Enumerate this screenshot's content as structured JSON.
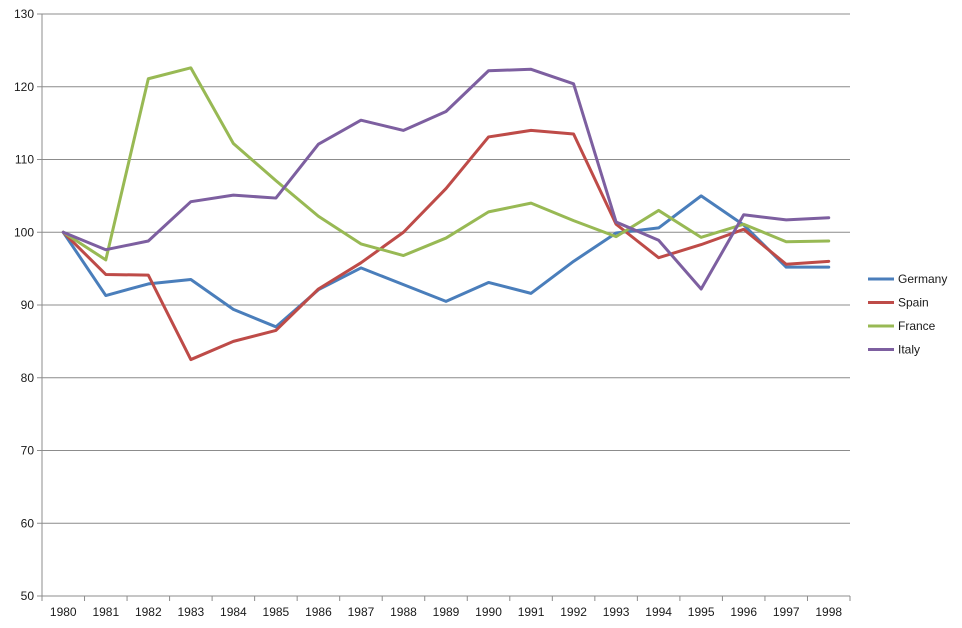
{
  "chart_data": {
    "type": "line",
    "title": "",
    "xlabel": "",
    "ylabel": "",
    "ylim": [
      50,
      130
    ],
    "y_ticks": [
      50,
      60,
      70,
      80,
      90,
      100,
      110,
      120,
      130
    ],
    "grid": "horizontal",
    "legend_position": "right",
    "categories": [
      "1980",
      "1981",
      "1982",
      "1983",
      "1984",
      "1985",
      "1986",
      "1987",
      "1988",
      "1989",
      "1990",
      "1991",
      "1992",
      "1993",
      "1994",
      "1995",
      "1996",
      "1997",
      "1998"
    ],
    "series": [
      {
        "name": "Germany",
        "color": "#4a7ebb",
        "values": [
          100,
          91.3,
          92.9,
          93.5,
          89.4,
          87.0,
          92.1,
          95.1,
          92.8,
          90.5,
          93.1,
          91.6,
          96.0,
          99.9,
          100.6,
          105.0,
          101.0,
          95.2,
          95.2
        ]
      },
      {
        "name": "Spain",
        "color": "#be4b48",
        "values": [
          100,
          94.2,
          94.1,
          82.5,
          85.0,
          86.5,
          92.2,
          95.8,
          100.0,
          106.0,
          113.1,
          114.0,
          113.5,
          101.1,
          96.5,
          98.3,
          100.4,
          95.6,
          96.0
        ]
      },
      {
        "name": "France",
        "color": "#98b954",
        "values": [
          100,
          96.2,
          121.1,
          122.6,
          112.2,
          107.1,
          102.2,
          98.4,
          96.8,
          99.2,
          102.8,
          104.0,
          101.6,
          99.4,
          103.0,
          99.3,
          101.1,
          98.7,
          98.8
        ]
      },
      {
        "name": "Italy",
        "color": "#7d5fa0",
        "values": [
          100,
          97.6,
          98.8,
          104.2,
          105.1,
          104.7,
          112.1,
          115.4,
          114.0,
          116.6,
          122.2,
          122.4,
          120.4,
          101.4,
          98.9,
          92.2,
          102.4,
          101.7,
          102.0
        ]
      }
    ]
  }
}
